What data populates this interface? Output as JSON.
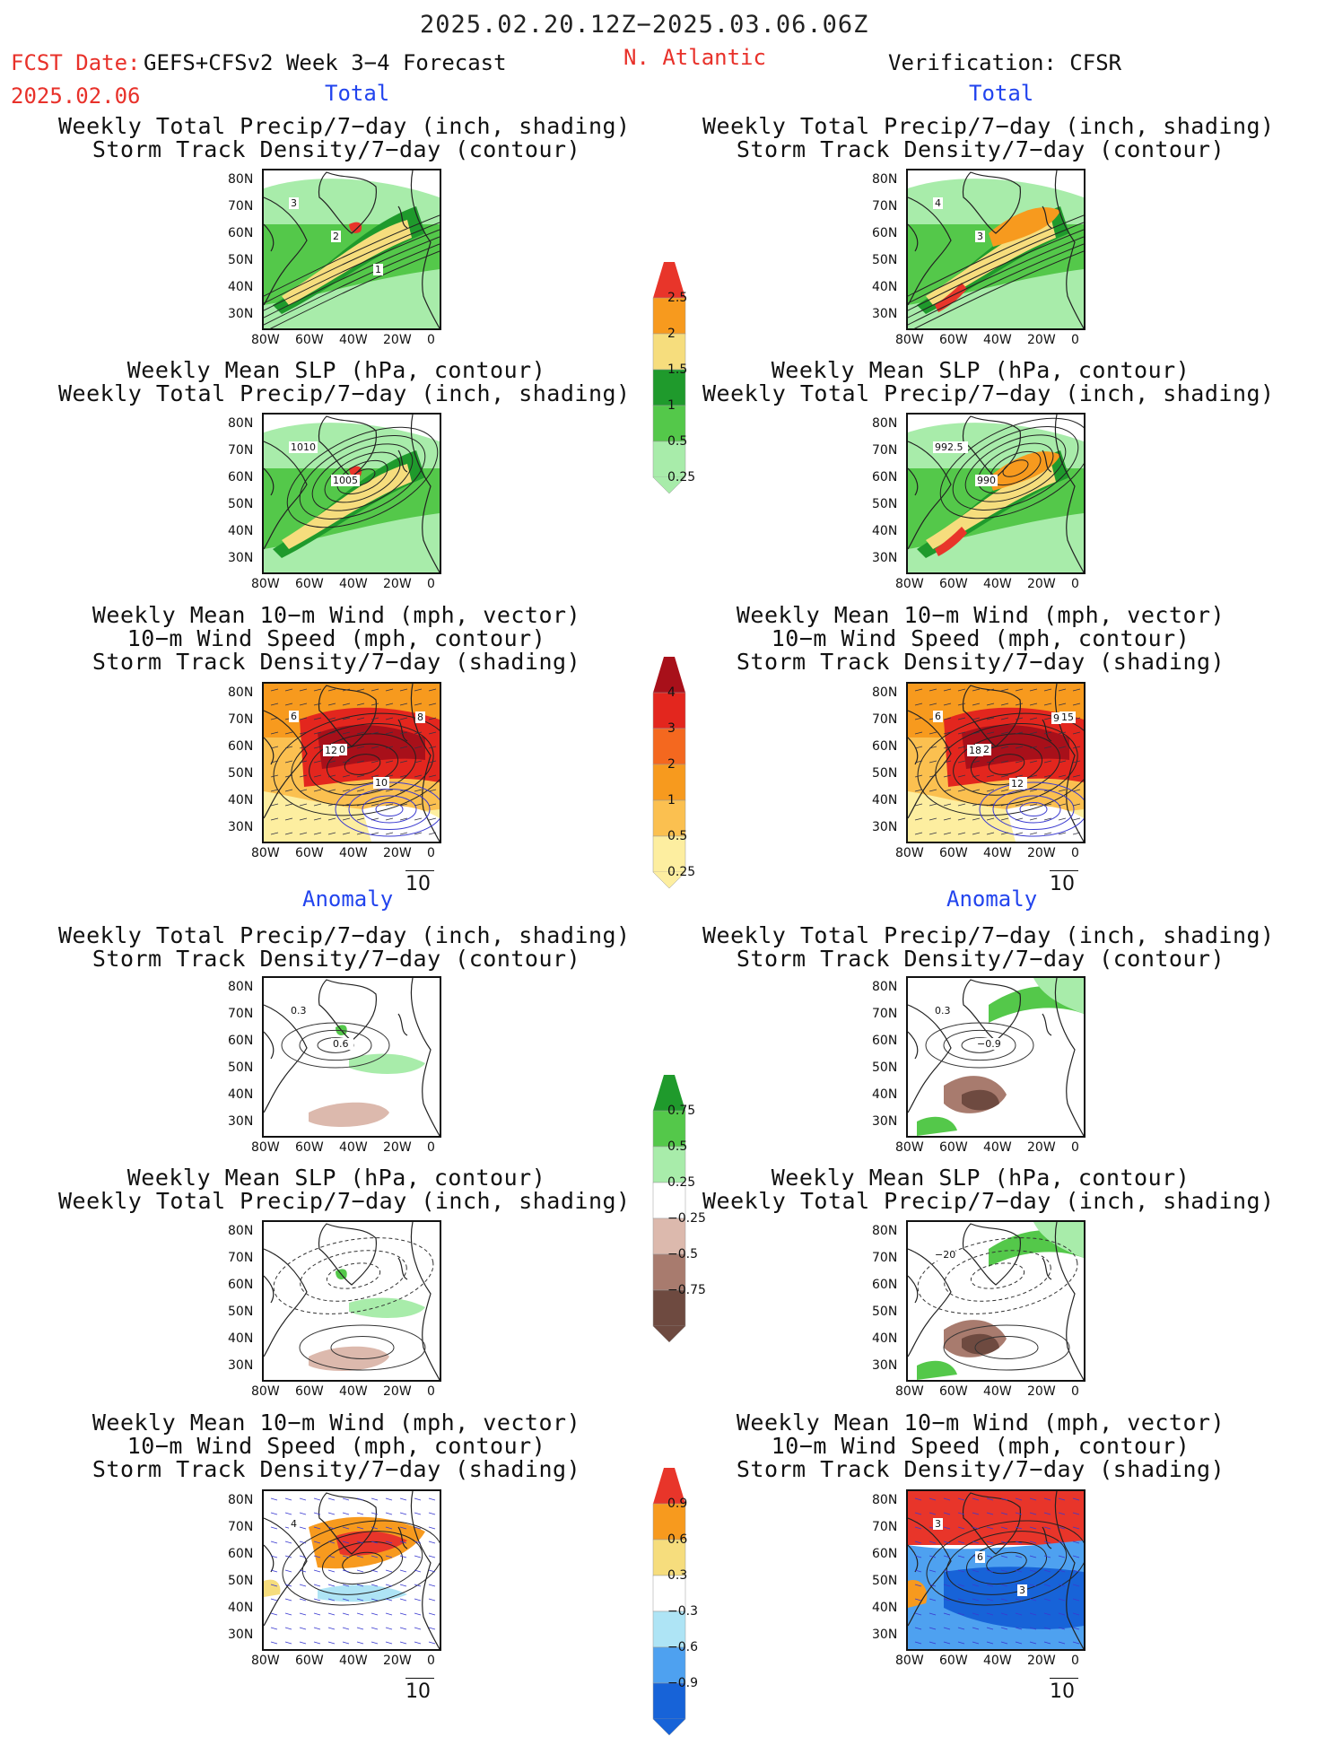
{
  "header": {
    "date_range": "2025.02.20.12Z−2025.03.06.06Z",
    "fcst_prefix": "FCST Date:",
    "fcst_model": "GEFS+CFSv2 Week 3−4 Forecast",
    "fcst_date": "2025.02.06",
    "region": "N. Atlantic",
    "verification": "Verification: CFSR"
  },
  "section_labels": {
    "total": "Total",
    "anomaly": "Anomaly"
  },
  "panel_titles": {
    "precip_track": [
      "Weekly Total Precip/7−day (inch, shading)",
      "Storm Track Density/7−day (contour)"
    ],
    "slp_precip": [
      "Weekly Mean SLP (hPa, contour)",
      "Weekly Total Precip/7−day (inch, shading)"
    ],
    "wind_track": [
      "Weekly Mean 10−m Wind (mph, vector)",
      "10−m Wind Speed (mph, contour)",
      "Storm Track Density/7−day (shading)"
    ]
  },
  "axes": {
    "lat_ticks": [
      "80N",
      "70N",
      "60N",
      "50N",
      "40N",
      "30N"
    ],
    "lon_ticks": [
      "80W",
      "60W",
      "40W",
      "20W",
      "0"
    ]
  },
  "vector_scale": "10",
  "colorbars": {
    "total_precip": {
      "labels": [
        "2.5",
        "2",
        "1.5",
        "1",
        "0.5",
        "0.25"
      ],
      "colors": [
        "#e8352a",
        "#f79a1e",
        "#f6dd7d",
        "#1f9a2c",
        "#54c84a",
        "#a8ecaa"
      ]
    },
    "total_track": {
      "labels": [
        "4",
        "3",
        "2",
        "1",
        "0.5",
        "0.25"
      ],
      "colors": [
        "#a8101a",
        "#e3261e",
        "#f4681f",
        "#f79a1e",
        "#fbc050",
        "#fdeea0"
      ]
    },
    "anom_precip": {
      "labels": [
        "0.75",
        "0.5",
        "0.25",
        "−0.25",
        "−0.5",
        "−0.75"
      ],
      "colors": [
        "#1f9a2c",
        "#54c84a",
        "#a8ecaa",
        "#ffffff",
        "#dcb9ad",
        "#a87b6e",
        "#6e4a40"
      ]
    },
    "anom_track": {
      "labels": [
        "0.9",
        "0.6",
        "0.3",
        "−0.3",
        "−0.6",
        "−0.9"
      ],
      "colors": [
        "#e8352a",
        "#f79a1e",
        "#f6dd7d",
        "#ffffff",
        "#aee4f5",
        "#4ea1f0",
        "#1763d8"
      ]
    }
  },
  "contour_labels": {
    "p1": [
      "3",
      "2",
      "1"
    ],
    "p2": [
      "1010",
      "1005"
    ],
    "p3": [
      "6",
      "10",
      "10",
      "8",
      "12"
    ],
    "p4": [
      "0.3",
      "0.6"
    ],
    "p6": [
      "4"
    ],
    "v1": [
      "4",
      "3"
    ],
    "v2": [
      "992.5",
      "990"
    ],
    "v3": [
      "6",
      "12",
      "9",
      "15",
      "18",
      "12",
      "9"
    ],
    "v4": [
      "0.3",
      "−0.9"
    ],
    "v5": [
      "−20"
    ],
    "v6": [
      "3",
      "6",
      "3"
    ]
  },
  "chart_data": [
    {
      "type": "heatmap",
      "panel": "forecast-total-precip-track",
      "section": "Total",
      "region": "N. Atlantic",
      "contour_labels": [
        "3",
        "2",
        "1"
      ]
    },
    {
      "type": "heatmap",
      "panel": "forecast-total-slp-precip",
      "section": "Total",
      "contour_labels": [
        "1010",
        "1005"
      ]
    },
    {
      "type": "heatmap",
      "panel": "forecast-total-wind-track",
      "section": "Total",
      "contour_labels": [
        "6",
        "10",
        "10",
        "8",
        "12"
      ]
    },
    {
      "type": "heatmap",
      "panel": "forecast-anomaly-precip-track",
      "section": "Anomaly",
      "contour_labels": [
        "0.3",
        "0.6"
      ]
    },
    {
      "type": "heatmap",
      "panel": "forecast-anomaly-slp-precip",
      "section": "Anomaly",
      "contour_labels": []
    },
    {
      "type": "heatmap",
      "panel": "forecast-anomaly-wind-track",
      "section": "Anomaly",
      "contour_labels": [
        "4"
      ]
    },
    {
      "type": "heatmap",
      "panel": "verification-total-precip-track",
      "section": "Total",
      "contour_labels": [
        "4",
        "3"
      ]
    },
    {
      "type": "heatmap",
      "panel": "verification-total-slp-precip",
      "section": "Total",
      "contour_labels": [
        "992.5",
        "990"
      ]
    },
    {
      "type": "heatmap",
      "panel": "verification-total-wind-track",
      "section": "Total",
      "contour_labels": [
        "6",
        "12",
        "9",
        "15",
        "18",
        "12",
        "9"
      ]
    },
    {
      "type": "heatmap",
      "panel": "verification-anomaly-precip-track",
      "section": "Anomaly",
      "contour_labels": [
        "0.3",
        "−0.9"
      ]
    },
    {
      "type": "heatmap",
      "panel": "verification-anomaly-slp-precip",
      "section": "Anomaly",
      "contour_labels": [
        "−20"
      ]
    },
    {
      "type": "heatmap",
      "panel": "verification-anomaly-wind-track",
      "section": "Anomaly",
      "contour_labels": [
        "3",
        "6",
        "3"
      ]
    }
  ]
}
